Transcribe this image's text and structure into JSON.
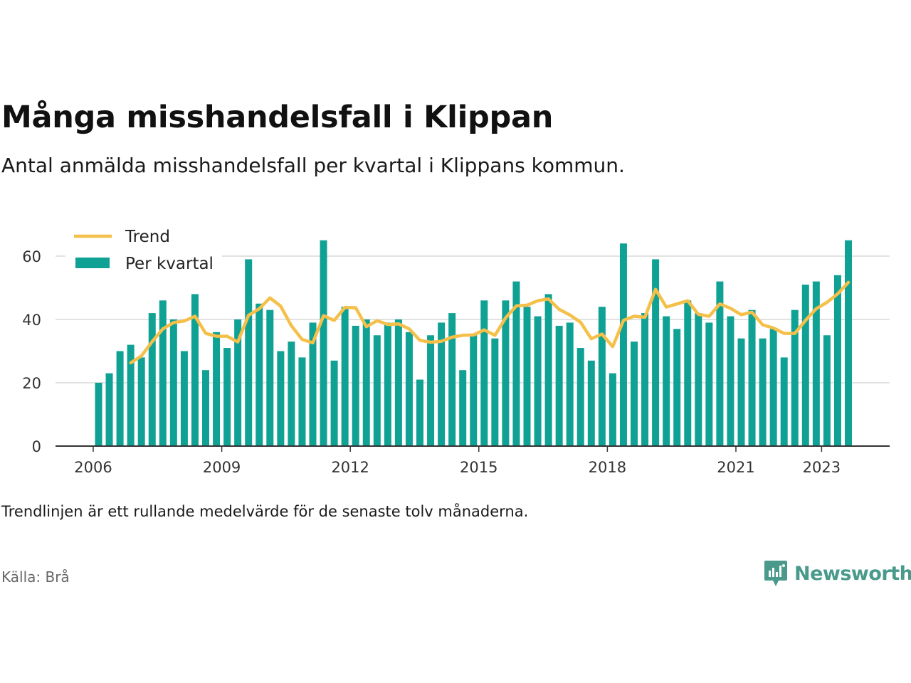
{
  "title": "Många misshandelsfall i Klippan",
  "subtitle": "Antal anmälda misshandelsfall per kvartal i Klippans kommun.",
  "note": "Trendlinjen är ett rullande medelvärde för de senaste tolv månaderna.",
  "source": "Källa: Brå",
  "brand": "Newsworthy",
  "colors": {
    "bar": "#10a195",
    "trend": "#f5c04a",
    "brand": "#4a9a8c"
  },
  "chart_data": {
    "type": "bar",
    "ylim": [
      0,
      65
    ],
    "y_ticks": [
      0,
      20,
      40,
      60
    ],
    "x_ticks": [
      {
        "label": "2006",
        "at": 2006.0
      },
      {
        "label": "2009",
        "at": 2009.0
      },
      {
        "label": "2012",
        "at": 2012.0
      },
      {
        "label": "2015",
        "at": 2015.0
      },
      {
        "label": "2018",
        "at": 2018.0
      },
      {
        "label": "2021",
        "at": 2021.0
      },
      {
        "label": "2023",
        "at": 2023.0
      }
    ],
    "grid": true,
    "legend_position": "top-left",
    "series": [
      {
        "name": "Per kvartal",
        "kind": "bar",
        "start": "2006 Q1",
        "values": [
          20,
          23,
          30,
          32,
          28,
          42,
          46,
          40,
          30,
          48,
          24,
          36,
          31,
          40,
          59,
          45,
          43,
          30,
          33,
          28,
          39,
          65,
          27,
          44,
          38,
          40,
          35,
          39,
          40,
          36,
          21,
          35,
          39,
          42,
          24,
          35,
          46,
          34,
          46,
          52,
          44,
          41,
          48,
          38,
          39,
          31,
          27,
          44,
          23,
          64,
          33,
          42,
          59,
          41,
          37,
          46,
          42,
          39,
          52,
          41,
          34,
          43,
          34,
          37,
          28,
          43,
          51,
          52,
          35,
          54,
          65
        ]
      },
      {
        "name": "Trend",
        "kind": "line",
        "start": "2006 Q4",
        "values": [
          26.3,
          28.5,
          33.0,
          37.0,
          39.0,
          39.5,
          41.0,
          35.6,
          34.7,
          34.7,
          32.9,
          41.3,
          43.4,
          46.8,
          44.2,
          38.0,
          33.7,
          32.6,
          41.2,
          39.7,
          43.8,
          43.7,
          37.7,
          39.6,
          38.4,
          38.6,
          37.0,
          33.4,
          32.8,
          33.1,
          34.4,
          35.0,
          35.1,
          36.7,
          35.0,
          40.5,
          44.3,
          44.5,
          45.9,
          46.5,
          43.2,
          41.4,
          39.1,
          33.9,
          35.4,
          31.4,
          39.7,
          41.0,
          40.7,
          49.5,
          43.9,
          44.9,
          45.9,
          41.6,
          41.0,
          44.9,
          43.5,
          41.5,
          42.3,
          38.3,
          37.3,
          35.6,
          35.6,
          39.7,
          43.4,
          45.4,
          48.1,
          51.7
        ]
      }
    ]
  }
}
